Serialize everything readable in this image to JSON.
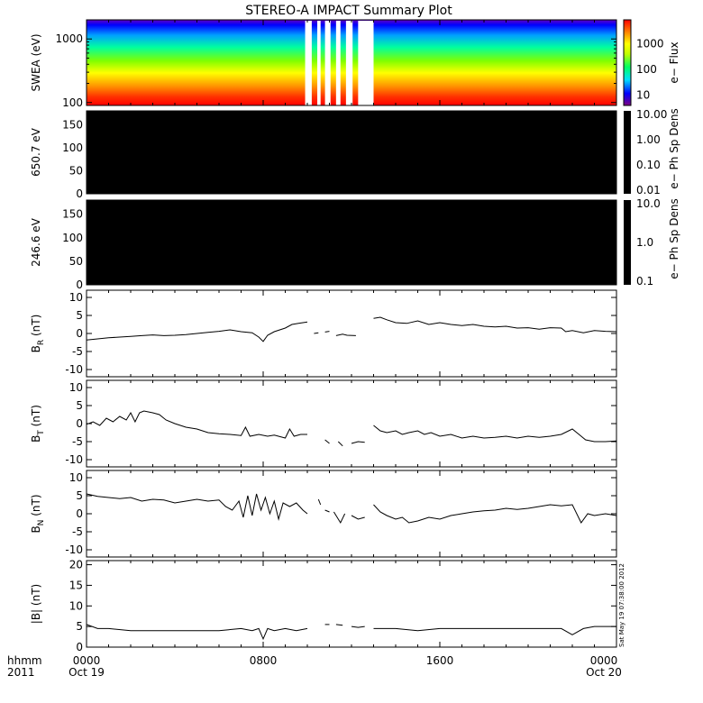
{
  "chart_data": {
    "type": "line",
    "title": "STEREO-A IMPACT Summary Plot",
    "date_axis": {
      "corner_labels": [
        "hhmm",
        "2011"
      ],
      "ticks": [
        {
          "time": "0000",
          "date": "Oct 19"
        },
        {
          "time": "0800",
          "date": ""
        },
        {
          "time": "1600",
          "date": ""
        },
        {
          "time": "0000",
          "date": "Oct 20"
        }
      ]
    },
    "timestamp": "Sat May 19 07:38:00 2012",
    "panels": [
      {
        "id": "swea",
        "type": "heatmap",
        "ylabel": "SWEA (eV)",
        "yscale": "log",
        "ylim": [
          90,
          2000
        ],
        "yticks": [
          "1000",
          "100"
        ],
        "colorbar_label": "e− Flux",
        "colorbar_ticks": [
          "1000",
          "100",
          "10"
        ],
        "colormap": [
          "#800080",
          "#0000ff",
          "#00e0ff",
          "#00ff60",
          "#c0ff00",
          "#ffff00",
          "#ff8000",
          "#ff0000"
        ],
        "data_gaps_hours": [
          [
            9.9,
            10.2
          ],
          [
            10.45,
            10.6
          ],
          [
            10.8,
            11.05
          ],
          [
            11.3,
            11.5
          ],
          [
            11.75,
            12.05
          ],
          [
            12.3,
            13.0
          ]
        ]
      },
      {
        "id": "pad650",
        "type": "heatmap",
        "ylabel": "650.7 eV",
        "ylim": [
          0,
          180
        ],
        "yticks": [
          "150",
          "100",
          "50",
          "0"
        ],
        "colorbar_label": "e− Ph Sp Dens",
        "colorbar_ticks": [
          "10.00",
          "1.00",
          "0.10",
          "0.01"
        ],
        "fill": "#000000"
      },
      {
        "id": "pad246",
        "type": "heatmap",
        "ylabel": "246.6 eV",
        "ylim": [
          0,
          180
        ],
        "yticks": [
          "150",
          "100",
          "50",
          "0"
        ],
        "colorbar_label": "e− Ph Sp Dens",
        "colorbar_ticks": [
          "10.0",
          "1.0",
          "0.1"
        ],
        "fill": "#000000"
      },
      {
        "id": "br",
        "type": "line",
        "ylabel_base": "B",
        "ylabel_sub": "R",
        "ylabel_unit": " (nT)",
        "ylim": [
          -12,
          12
        ],
        "yticks": [
          10,
          5,
          0,
          -5,
          -10
        ],
        "segments": [
          [
            [
              0,
              -1.8
            ],
            [
              0.5,
              -1.5
            ],
            [
              1,
              -1.2
            ],
            [
              1.5,
              -1.0
            ],
            [
              2,
              -0.8
            ],
            [
              2.5,
              -0.6
            ],
            [
              3,
              -0.4
            ],
            [
              3.5,
              -0.6
            ],
            [
              4,
              -0.5
            ],
            [
              4.5,
              -0.3
            ],
            [
              5,
              0.0
            ],
            [
              5.5,
              0.3
            ],
            [
              6,
              0.6
            ],
            [
              6.5,
              1.0
            ],
            [
              7,
              0.5
            ],
            [
              7.5,
              0.2
            ],
            [
              7.8,
              -1.0
            ],
            [
              8,
              -2.2
            ],
            [
              8.2,
              -0.5
            ],
            [
              8.5,
              0.5
            ],
            [
              9,
              1.5
            ],
            [
              9.3,
              2.5
            ],
            [
              9.6,
              2.8
            ],
            [
              9.8,
              3.0
            ],
            [
              10.0,
              3.2
            ]
          ],
          [
            [
              10.3,
              0.0
            ],
            [
              10.5,
              0.2
            ]
          ],
          [
            [
              10.8,
              0.4
            ],
            [
              11.0,
              0.6
            ]
          ],
          [
            [
              11.3,
              -0.6
            ],
            [
              11.6,
              -0.2
            ],
            [
              11.8,
              -0.5
            ],
            [
              12.2,
              -0.6
            ]
          ],
          [
            [
              13.0,
              4.2
            ],
            [
              13.3,
              4.5
            ],
            [
              13.6,
              3.8
            ],
            [
              14,
              3.0
            ],
            [
              14.5,
              2.8
            ],
            [
              15,
              3.5
            ],
            [
              15.5,
              2.5
            ],
            [
              16,
              3.0
            ],
            [
              16.5,
              2.5
            ],
            [
              17,
              2.2
            ],
            [
              17.5,
              2.5
            ],
            [
              18,
              2.0
            ],
            [
              18.5,
              1.8
            ],
            [
              19,
              2.0
            ],
            [
              19.5,
              1.5
            ],
            [
              20,
              1.6
            ],
            [
              20.5,
              1.2
            ],
            [
              21,
              1.6
            ],
            [
              21.5,
              1.5
            ],
            [
              21.7,
              0.5
            ],
            [
              22,
              0.8
            ],
            [
              22.5,
              0.2
            ],
            [
              23,
              0.8
            ],
            [
              23.5,
              0.6
            ],
            [
              24,
              0.5
            ]
          ]
        ]
      },
      {
        "id": "bt",
        "type": "line",
        "ylabel_base": "B",
        "ylabel_sub": "T",
        "ylabel_unit": " (nT)",
        "ylim": [
          -12,
          12
        ],
        "yticks": [
          10,
          5,
          0,
          -5,
          -10
        ],
        "segments": [
          [
            [
              0,
              -0.2
            ],
            [
              0.3,
              0.5
            ],
            [
              0.6,
              -0.5
            ],
            [
              0.9,
              1.5
            ],
            [
              1.2,
              0.5
            ],
            [
              1.5,
              2.0
            ],
            [
              1.8,
              1.0
            ],
            [
              2.0,
              3.0
            ],
            [
              2.2,
              0.5
            ],
            [
              2.4,
              3.0
            ],
            [
              2.6,
              3.5
            ],
            [
              3.0,
              3.0
            ],
            [
              3.3,
              2.5
            ],
            [
              3.6,
              1.0
            ],
            [
              4.0,
              0.0
            ],
            [
              4.5,
              -1.0
            ],
            [
              5.0,
              -1.5
            ],
            [
              5.5,
              -2.5
            ],
            [
              6.0,
              -2.8
            ],
            [
              6.5,
              -3.0
            ],
            [
              7.0,
              -3.3
            ],
            [
              7.2,
              -1.0
            ],
            [
              7.4,
              -3.5
            ],
            [
              7.8,
              -3.0
            ],
            [
              8.2,
              -3.5
            ],
            [
              8.5,
              -3.2
            ],
            [
              9.0,
              -4.0
            ],
            [
              9.2,
              -1.5
            ],
            [
              9.4,
              -3.5
            ],
            [
              9.7,
              -3.0
            ],
            [
              10.0,
              -3.0
            ]
          ],
          [
            [
              10.8,
              -4.5
            ],
            [
              11.0,
              -5.5
            ]
          ],
          [
            [
              11.4,
              -5.0
            ],
            [
              11.6,
              -6.2
            ]
          ],
          [
            [
              12.0,
              -5.5
            ],
            [
              12.3,
              -5.0
            ],
            [
              12.6,
              -5.2
            ]
          ],
          [
            [
              13.0,
              -0.5
            ],
            [
              13.3,
              -2.0
            ],
            [
              13.6,
              -2.5
            ],
            [
              14.0,
              -2.0
            ],
            [
              14.3,
              -3.0
            ],
            [
              14.6,
              -2.5
            ],
            [
              15.0,
              -2.0
            ],
            [
              15.3,
              -3.0
            ],
            [
              15.6,
              -2.5
            ],
            [
              16.0,
              -3.5
            ],
            [
              16.5,
              -3.0
            ],
            [
              17.0,
              -4.0
            ],
            [
              17.5,
              -3.5
            ],
            [
              18.0,
              -4.0
            ],
            [
              18.5,
              -3.8
            ],
            [
              19.0,
              -3.5
            ],
            [
              19.5,
              -4.0
            ],
            [
              20.0,
              -3.5
            ],
            [
              20.5,
              -3.8
            ],
            [
              21.0,
              -3.5
            ],
            [
              21.5,
              -3.0
            ],
            [
              22.0,
              -1.5
            ],
            [
              22.3,
              -3.0
            ],
            [
              22.6,
              -4.5
            ],
            [
              23.0,
              -5.0
            ],
            [
              23.5,
              -5.0
            ],
            [
              24.0,
              -4.8
            ]
          ]
        ]
      },
      {
        "id": "bn",
        "type": "line",
        "ylabel_base": "B",
        "ylabel_sub": "N",
        "ylabel_unit": " (nT)",
        "ylim": [
          -12,
          12
        ],
        "yticks": [
          10,
          5,
          0,
          -5,
          -10
        ],
        "segments": [
          [
            [
              0,
              5.5
            ],
            [
              0.5,
              4.8
            ],
            [
              1.0,
              4.5
            ],
            [
              1.5,
              4.2
            ],
            [
              2.0,
              4.5
            ],
            [
              2.5,
              3.5
            ],
            [
              3.0,
              4.0
            ],
            [
              3.5,
              3.8
            ],
            [
              4.0,
              3.0
            ],
            [
              4.5,
              3.5
            ],
            [
              5.0,
              4.0
            ],
            [
              5.5,
              3.5
            ],
            [
              6.0,
              3.8
            ],
            [
              6.3,
              2.0
            ],
            [
              6.6,
              1.0
            ],
            [
              6.9,
              3.5
            ],
            [
              7.1,
              -1.0
            ],
            [
              7.3,
              5.0
            ],
            [
              7.5,
              -0.5
            ],
            [
              7.7,
              5.5
            ],
            [
              7.9,
              1.0
            ],
            [
              8.1,
              4.5
            ],
            [
              8.3,
              0.0
            ],
            [
              8.5,
              3.5
            ],
            [
              8.7,
              -1.5
            ],
            [
              8.9,
              3.0
            ],
            [
              9.2,
              2.0
            ],
            [
              9.5,
              3.0
            ],
            [
              9.8,
              1.0
            ],
            [
              10.0,
              0.0
            ]
          ],
          [
            [
              10.5,
              4.0
            ],
            [
              10.6,
              2.5
            ]
          ],
          [
            [
              10.8,
              1.0
            ],
            [
              11.0,
              0.5
            ]
          ],
          [
            [
              11.2,
              0.5
            ],
            [
              11.5,
              -2.5
            ],
            [
              11.7,
              0.0
            ]
          ],
          [
            [
              12.0,
              -0.5
            ],
            [
              12.3,
              -1.5
            ],
            [
              12.6,
              -1.0
            ]
          ],
          [
            [
              13.0,
              2.5
            ],
            [
              13.3,
              0.5
            ],
            [
              13.6,
              -0.5
            ],
            [
              14.0,
              -1.5
            ],
            [
              14.3,
              -1.0
            ],
            [
              14.6,
              -2.5
            ],
            [
              15.0,
              -2.0
            ],
            [
              15.5,
              -1.0
            ],
            [
              16.0,
              -1.5
            ],
            [
              16.5,
              -0.5
            ],
            [
              17.0,
              0.0
            ],
            [
              17.5,
              0.5
            ],
            [
              18.0,
              0.8
            ],
            [
              18.5,
              1.0
            ],
            [
              19.0,
              1.5
            ],
            [
              19.5,
              1.2
            ],
            [
              20.0,
              1.5
            ],
            [
              20.5,
              2.0
            ],
            [
              21.0,
              2.5
            ],
            [
              21.5,
              2.2
            ],
            [
              22.0,
              2.5
            ],
            [
              22.4,
              -2.5
            ],
            [
              22.7,
              0.0
            ],
            [
              23.0,
              -0.5
            ],
            [
              23.5,
              0.0
            ],
            [
              24.0,
              -0.5
            ]
          ]
        ]
      },
      {
        "id": "bmag",
        "type": "line",
        "ylabel": "|B| (nT)",
        "ylim": [
          0,
          21
        ],
        "yticks": [
          20,
          15,
          10,
          5,
          0
        ],
        "segments": [
          [
            [
              0,
              5.5
            ],
            [
              0.5,
              4.5
            ],
            [
              1.0,
              4.5
            ],
            [
              2.0,
              4.0
            ],
            [
              3.0,
              4.0
            ],
            [
              4.0,
              4.0
            ],
            [
              5.0,
              4.0
            ],
            [
              6.0,
              4.0
            ],
            [
              7.0,
              4.5
            ],
            [
              7.5,
              4.0
            ],
            [
              7.8,
              4.5
            ],
            [
              8.0,
              2.0
            ],
            [
              8.2,
              4.5
            ],
            [
              8.5,
              4.0
            ],
            [
              9.0,
              4.5
            ],
            [
              9.5,
              4.0
            ],
            [
              10.0,
              4.5
            ]
          ],
          [
            [
              10.8,
              5.5
            ],
            [
              11.0,
              5.5
            ]
          ],
          [
            [
              11.3,
              5.5
            ],
            [
              11.6,
              5.3
            ]
          ],
          [
            [
              12.0,
              5.0
            ],
            [
              12.3,
              4.8
            ],
            [
              12.6,
              5.0
            ]
          ],
          [
            [
              13.0,
              4.5
            ],
            [
              14.0,
              4.5
            ],
            [
              15.0,
              4.0
            ],
            [
              16.0,
              4.5
            ],
            [
              17.0,
              4.5
            ],
            [
              18.0,
              4.5
            ],
            [
              19.0,
              4.5
            ],
            [
              20.0,
              4.5
            ],
            [
              21.0,
              4.5
            ],
            [
              21.5,
              4.5
            ],
            [
              22.0,
              3.0
            ],
            [
              22.5,
              4.5
            ],
            [
              23.0,
              5.0
            ],
            [
              23.5,
              5.0
            ],
            [
              24.0,
              5.0
            ]
          ]
        ]
      }
    ]
  }
}
